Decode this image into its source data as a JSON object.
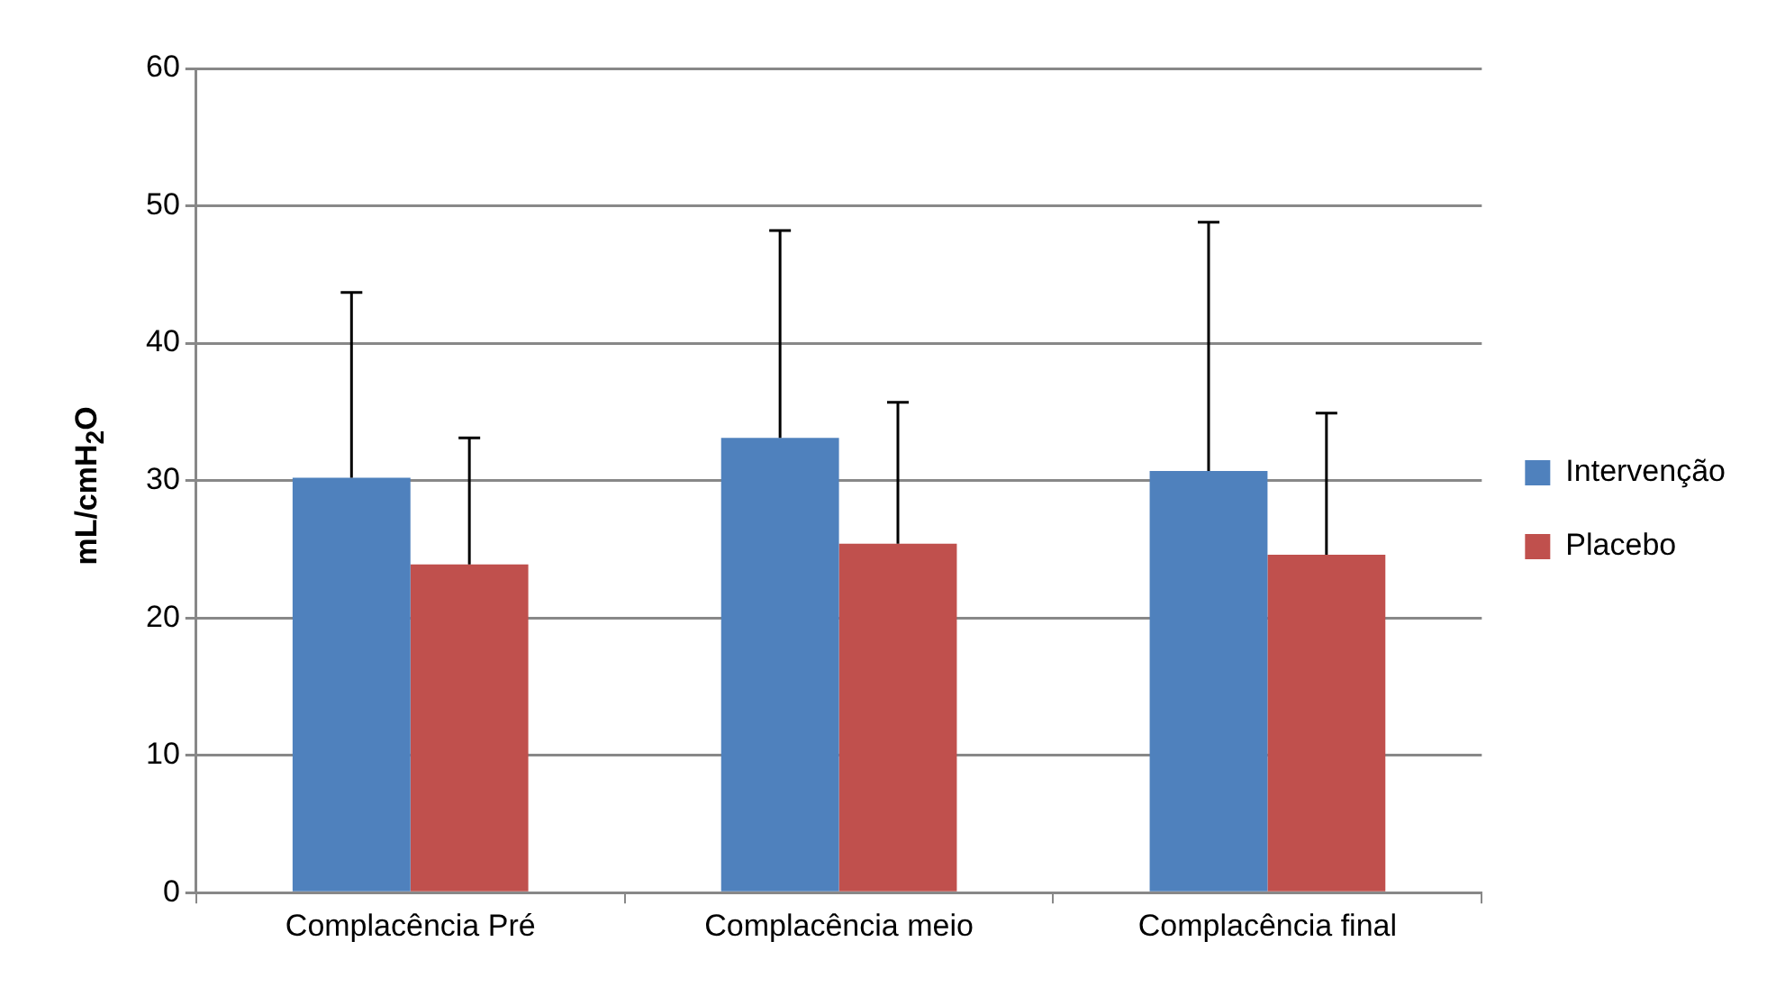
{
  "chart_data": {
    "type": "bar",
    "ylabel": "mL/cmH$_{2}$O",
    "categories": [
      "Complacência Pré",
      "Complacência meio",
      "Complacência final"
    ],
    "series": [
      {
        "name": "Intervenção",
        "color": "#4f81bd",
        "values": [
          30.2,
          33.1,
          30.7
        ],
        "errors": [
          [
            30.2,
            43.7
          ],
          [
            33.1,
            48.2
          ],
          [
            30.7,
            48.8
          ]
        ]
      },
      {
        "name": "Placebo",
        "color": "#c0504d",
        "values": [
          23.9,
          25.4,
          24.6
        ],
        "errors": [
          [
            23.9,
            33.1
          ],
          [
            25.4,
            35.7
          ],
          [
            24.6,
            34.9
          ]
        ]
      }
    ],
    "ylim": [
      0,
      60
    ],
    "yticks": [
      0,
      10,
      20,
      30,
      40,
      50,
      60
    ],
    "grid": "y",
    "legend": "right"
  }
}
